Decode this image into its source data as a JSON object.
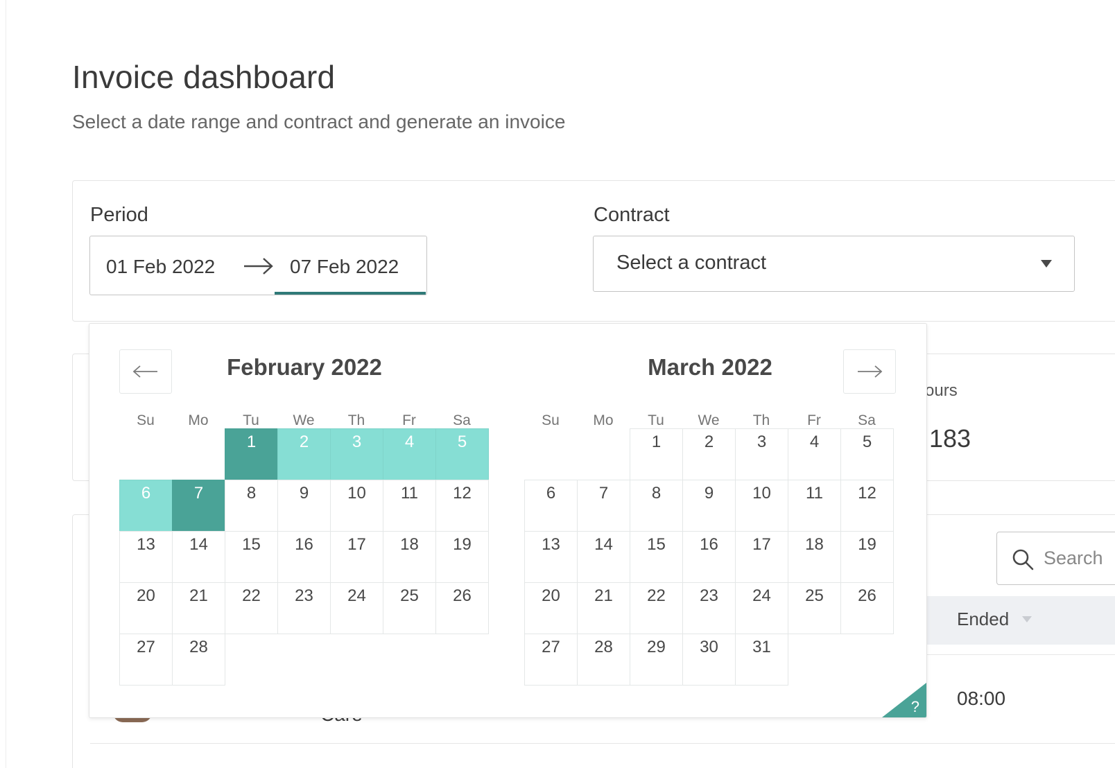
{
  "page": {
    "title": "Invoice dashboard",
    "subtitle": "Select a date range and contract and generate an invoice"
  },
  "filters": {
    "period_label": "Period",
    "start_date": "01 Feb 2022",
    "end_date": "07 Feb 2022",
    "contract_label": "Contract",
    "contract_placeholder": "Select a contract"
  },
  "stats": {
    "label": "ours",
    "value": "183"
  },
  "table": {
    "search_placeholder": "Search",
    "column_ended": "Ended",
    "row_ended": "08:00",
    "row_name_fragment": "Care"
  },
  "datepicker": {
    "weekdays": [
      "Su",
      "Mo",
      "Tu",
      "We",
      "Th",
      "Fr",
      "Sa"
    ],
    "months": [
      {
        "title": "February 2022",
        "first_weekday": 2,
        "days": [
          "1",
          "2",
          "3",
          "4",
          "5",
          "6",
          "7",
          "8",
          "9",
          "10",
          "11",
          "12",
          "13",
          "14",
          "15",
          "16",
          "17",
          "18",
          "19",
          "20",
          "21",
          "22",
          "23",
          "24",
          "25",
          "26",
          "27",
          "28"
        ]
      },
      {
        "title": "March 2022",
        "first_weekday": 2,
        "days": [
          "1",
          "2",
          "3",
          "4",
          "5",
          "6",
          "7",
          "8",
          "9",
          "10",
          "11",
          "12",
          "13",
          "14",
          "15",
          "16",
          "17",
          "18",
          "19",
          "20",
          "21",
          "22",
          "23",
          "24",
          "25",
          "26",
          "27",
          "28",
          "29",
          "30",
          "31"
        ]
      }
    ],
    "selected_start": "1",
    "selected_end": "7",
    "range_month_index": 0,
    "help_mark": "?"
  },
  "colors": {
    "selected": "#4aa397",
    "in_range": "#86ded4",
    "accent_underline": "#2f7a78"
  },
  "icons": {
    "prev": "arrow-left-icon",
    "next": "arrow-right-icon",
    "range_arrow": "arrow-right-icon",
    "search": "search-icon",
    "select": "caret-down-icon",
    "sort": "sort-caret-icon"
  }
}
